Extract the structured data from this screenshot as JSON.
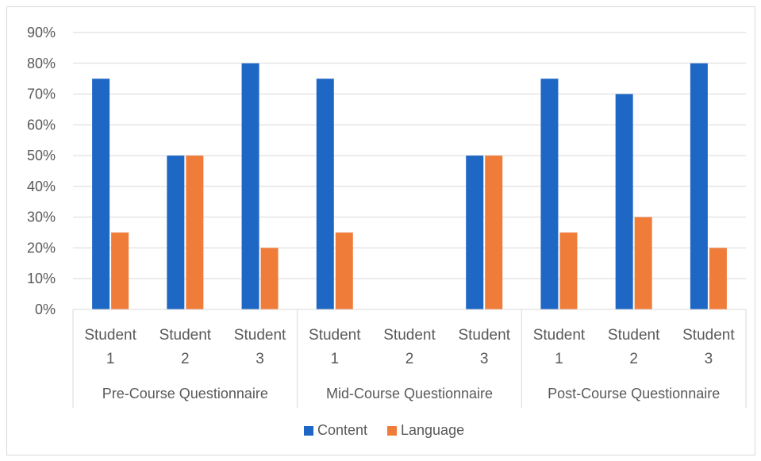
{
  "chart_data": {
    "type": "bar",
    "title": "",
    "xlabel": "",
    "ylabel": "",
    "ylim": [
      0,
      90
    ],
    "y_ticks": [
      "0%",
      "10%",
      "20%",
      "30%",
      "40%",
      "50%",
      "60%",
      "70%",
      "80%",
      "90%"
    ],
    "y_tick_values": [
      0,
      10,
      20,
      30,
      40,
      50,
      60,
      70,
      80,
      90
    ],
    "grid": true,
    "legend_position": "bottom",
    "groups": [
      {
        "name": "Pre-Course Questionnaire",
        "categories": [
          {
            "line1": "Student",
            "line2": "1"
          },
          {
            "line1": "Student",
            "line2": "2"
          },
          {
            "line1": "Student",
            "line2": "3"
          }
        ]
      },
      {
        "name": "Mid-Course Questionnaire",
        "categories": [
          {
            "line1": "Student",
            "line2": "1"
          },
          {
            "line1": "Student",
            "line2": "2"
          },
          {
            "line1": "Student",
            "line2": "3"
          }
        ]
      },
      {
        "name": "Post-Course Questionnaire",
        "categories": [
          {
            "line1": "Student",
            "line2": "1"
          },
          {
            "line1": "Student",
            "line2": "2"
          },
          {
            "line1": "Student",
            "line2": "3"
          }
        ]
      }
    ],
    "series": [
      {
        "name": "Content",
        "color": "#1f67c5",
        "values": [
          75,
          50,
          80,
          75,
          0,
          50,
          75,
          70,
          80
        ]
      },
      {
        "name": "Language",
        "color": "#f07c3a",
        "values": [
          25,
          50,
          20,
          25,
          0,
          50,
          25,
          30,
          20
        ]
      }
    ],
    "colors": {
      "gridline": "#d9d9d9",
      "axis": "#d9d9d9",
      "text": "#595959"
    }
  }
}
